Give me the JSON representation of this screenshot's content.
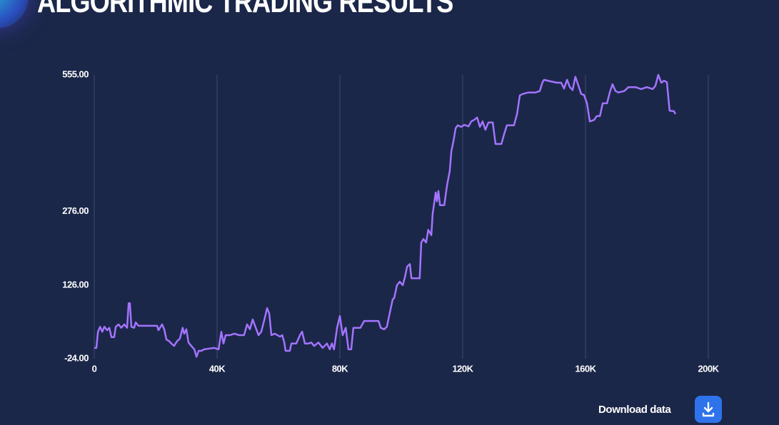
{
  "header": {
    "title": "ALGORITHMIC TRADING RESULTS"
  },
  "chart_data": {
    "type": "line",
    "x": [
      0,
      700,
      1200,
      1900,
      2600,
      3300,
      4200,
      4900,
      5600,
      6500,
      7000,
      7900,
      8800,
      9800,
      10700,
      11200,
      11600,
      12100,
      13000,
      13500,
      14400,
      15800,
      18100,
      20500,
      20900,
      22100,
      22800,
      23500,
      24400,
      25100,
      26000,
      27000,
      27900,
      28800,
      29300,
      30000,
      30700,
      31600,
      32600,
      33300,
      34000,
      34900,
      35800,
      36700,
      39100,
      40500,
      41400,
      42100,
      42800,
      44200,
      45600,
      47200,
      48800,
      49800,
      50700,
      51600,
      52600,
      53500,
      54400,
      55300,
      56300,
      57000,
      57700,
      58800,
      60500,
      61200,
      61900,
      62300,
      63700,
      64200,
      65800,
      67000,
      67700,
      68600,
      69800,
      70700,
      71600,
      73000,
      74400,
      75800,
      76700,
      77400,
      78100,
      79100,
      80000,
      80900,
      81900,
      82800,
      83700,
      84400,
      86700,
      87900,
      90200,
      92600,
      93300,
      94400,
      95300,
      96300,
      97200,
      97700,
      98600,
      99500,
      100500,
      101200,
      101900,
      102800,
      103300,
      106000,
      106500,
      107200,
      108100,
      108800,
      109800,
      110200,
      111200,
      111600,
      112100,
      112600,
      114000,
      114900,
      115800,
      116300,
      117000,
      117700,
      118400,
      119500,
      120500,
      121900,
      122800,
      123700,
      124700,
      125600,
      126500,
      127400,
      128400,
      129800,
      130700,
      132600,
      133500,
      134400,
      135800,
      136700,
      137700,
      138600,
      139500,
      141400,
      143700,
      145100,
      146000,
      146500,
      148400,
      150700,
      152100,
      153000,
      154000,
      154900,
      155800,
      156700,
      157700,
      158600,
      159500,
      160500,
      161400,
      162800,
      163700,
      164700,
      165600,
      167000,
      167900,
      168800,
      169800,
      170700,
      172600,
      174000,
      176300,
      178100,
      180000,
      181900,
      182800,
      183700,
      184700,
      185600,
      186500,
      187400,
      188800,
      189300
    ],
    "series": [
      {
        "color": "#a374ff",
        "values": [
          -2,
          -2,
          31,
          41,
          31,
          41,
          34,
          39,
          20,
          20,
          41,
          46,
          39,
          46,
          39,
          89,
          89,
          41,
          39,
          50,
          43,
          43,
          43,
          43,
          34,
          46,
          36,
          15,
          12,
          7,
          2,
          12,
          17,
          39,
          27,
          36,
          9,
          2,
          -5,
          -20,
          -8,
          -8,
          -5,
          -4,
          -2,
          -5,
          31,
          7,
          24,
          24,
          27,
          24,
          24,
          46,
          36,
          56,
          39,
          24,
          31,
          53,
          79,
          68,
          24,
          27,
          21,
          24,
          9,
          -8,
          -8,
          7,
          7,
          24,
          31,
          7,
          7,
          9,
          2,
          9,
          -2,
          7,
          -5,
          7,
          -5,
          39,
          63,
          24,
          39,
          -5,
          -5,
          39,
          39,
          53,
          53,
          53,
          39,
          36,
          41,
          71,
          97,
          100,
          126,
          133,
          126,
          143,
          164,
          169,
          140,
          140,
          213,
          220,
          213,
          239,
          228,
          271,
          315,
          297,
          318,
          289,
          289,
          330,
          359,
          399,
          420,
          446,
          452,
          449,
          453,
          450,
          460,
          463,
          468,
          449,
          460,
          443,
          458,
          458,
          414,
          414,
          434,
          452,
          452,
          452,
          475,
          513,
          516,
          519,
          519,
          522,
          540,
          545,
          542,
          539,
          539,
          527,
          545,
          530,
          524,
          551,
          533,
          516,
          514,
          497,
          460,
          463,
          471,
          471,
          497,
          497,
          519,
          536,
          522,
          519,
          522,
          530,
          530,
          526,
          530,
          526,
          533,
          555,
          539,
          543,
          540,
          482,
          481,
          475
        ]
      }
    ],
    "xlim": [
      0,
      200000
    ],
    "xticks": [
      0,
      {
        "value": 40000,
        "label": "40K"
      },
      {
        "value": 80000,
        "label": "80K"
      },
      {
        "value": 120000,
        "label": "120K"
      },
      {
        "value": 160000,
        "label": "160K"
      },
      {
        "value": 200000,
        "label": "200K"
      }
    ],
    "ylim": [
      -24,
      555
    ],
    "yticks": [
      {
        "value": -24,
        "label": "-24.00"
      },
      {
        "value": 126,
        "label": "126.00"
      },
      {
        "value": 276,
        "label": "276.00"
      },
      {
        "value": 555,
        "label": "555.00"
      }
    ],
    "grid": "x"
  },
  "download": {
    "label": "Download data"
  }
}
